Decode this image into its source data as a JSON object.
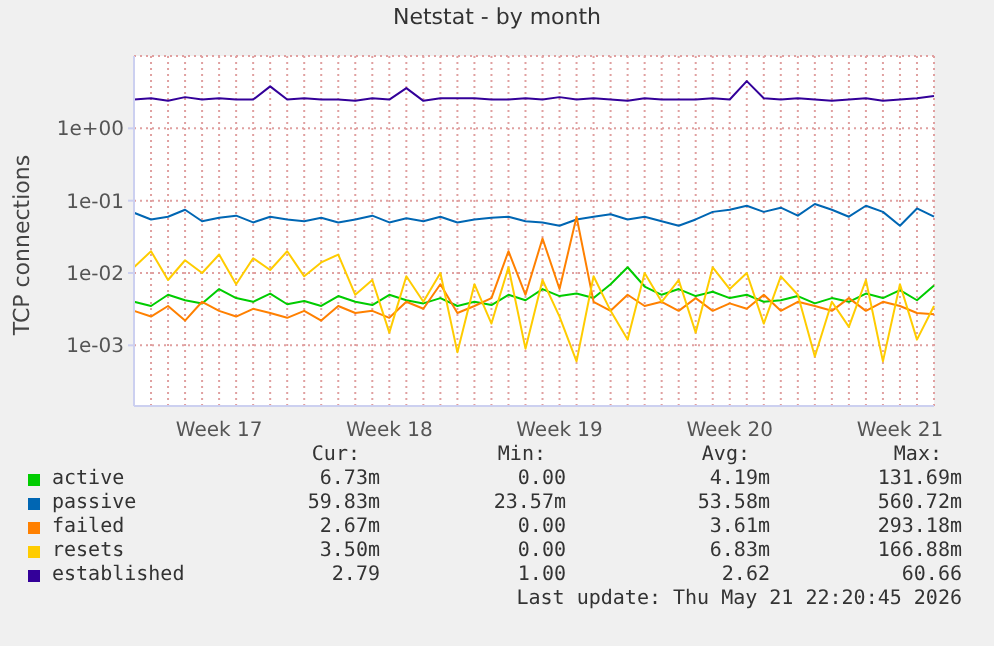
{
  "chart_data": {
    "type": "line",
    "title": "Netstat - by month",
    "ylabel": "TCP connections",
    "log": "y",
    "grid": true,
    "legend": "bottom",
    "marker": "none",
    "line_style": "solid",
    "categories": [
      null,
      null,
      null,
      null,
      null,
      "Week 17",
      null,
      null,
      null,
      null,
      null,
      null,
      null,
      null,
      null,
      "Week 18",
      null,
      null,
      null,
      null,
      null,
      null,
      null,
      null,
      null,
      "Week 19",
      null,
      null,
      null,
      null,
      null,
      null,
      null,
      null,
      null,
      "Week 20",
      null,
      null,
      null,
      null,
      null,
      null,
      null,
      null,
      null,
      "Week 21",
      null,
      null
    ],
    "ylim": [
      0.000145,
      10
    ],
    "yticks": [
      {
        "value": 0.001,
        "label": "1e-03"
      },
      {
        "value": 0.01,
        "label": "1e-02"
      },
      {
        "value": 0.1,
        "label": "1e-01"
      },
      {
        "value": 1,
        "label": "1e+00"
      }
    ],
    "series": [
      {
        "name": "active",
        "color": "#00cc00",
        "values": [
          0.004,
          0.0035,
          0.005,
          0.0042,
          0.0038,
          0.006,
          0.0045,
          0.004,
          0.0052,
          0.0037,
          0.0041,
          0.0035,
          0.0048,
          0.004,
          0.0036,
          0.005,
          0.0042,
          0.0038,
          0.0045,
          0.0035,
          0.004,
          0.0036,
          0.005,
          0.0042,
          0.006,
          0.0048,
          0.0052,
          0.0045,
          0.007,
          0.012,
          0.0065,
          0.005,
          0.006,
          0.0048,
          0.0055,
          0.0045,
          0.005,
          0.004,
          0.0042,
          0.0048,
          0.0038,
          0.0045,
          0.004,
          0.0052,
          0.0045,
          0.0058,
          0.0042,
          0.0067
        ]
      },
      {
        "name": "passive",
        "color": "#0066b3",
        "values": [
          0.068,
          0.055,
          0.06,
          0.075,
          0.052,
          0.058,
          0.062,
          0.05,
          0.06,
          0.055,
          0.052,
          0.058,
          0.05,
          0.055,
          0.062,
          0.05,
          0.057,
          0.052,
          0.06,
          0.05,
          0.055,
          0.058,
          0.06,
          0.052,
          0.05,
          0.045,
          0.055,
          0.06,
          0.065,
          0.055,
          0.06,
          0.052,
          0.045,
          0.055,
          0.07,
          0.075,
          0.085,
          0.07,
          0.08,
          0.062,
          0.09,
          0.075,
          0.06,
          0.085,
          0.07,
          0.045,
          0.078,
          0.06
        ]
      },
      {
        "name": "failed",
        "color": "#ff8000",
        "values": [
          0.003,
          0.0025,
          0.0035,
          0.0022,
          0.004,
          0.003,
          0.0025,
          0.0032,
          0.0028,
          0.0024,
          0.003,
          0.0022,
          0.0035,
          0.0028,
          0.003,
          0.0024,
          0.004,
          0.0032,
          0.007,
          0.0028,
          0.0035,
          0.0045,
          0.02,
          0.005,
          0.03,
          0.006,
          0.06,
          0.004,
          0.003,
          0.005,
          0.0035,
          0.004,
          0.003,
          0.0045,
          0.003,
          0.0038,
          0.0032,
          0.005,
          0.003,
          0.004,
          0.0035,
          0.003,
          0.0045,
          0.003,
          0.004,
          0.0035,
          0.0028,
          0.0027
        ]
      },
      {
        "name": "resets",
        "color": "#ffcc00",
        "values": [
          0.012,
          0.02,
          0.008,
          0.015,
          0.01,
          0.018,
          0.007,
          0.016,
          0.011,
          0.02,
          0.009,
          0.014,
          0.018,
          0.005,
          0.008,
          0.0015,
          0.009,
          0.004,
          0.01,
          0.0008,
          0.007,
          0.002,
          0.012,
          0.0009,
          0.008,
          0.0025,
          0.0006,
          0.009,
          0.003,
          0.0012,
          0.01,
          0.004,
          0.008,
          0.0015,
          0.012,
          0.006,
          0.01,
          0.002,
          0.009,
          0.005,
          0.0007,
          0.004,
          0.0018,
          0.008,
          0.0006,
          0.007,
          0.0012,
          0.0035
        ]
      },
      {
        "name": "established",
        "color": "#330099",
        "values": [
          2.5,
          2.6,
          2.4,
          2.7,
          2.5,
          2.6,
          2.5,
          2.5,
          3.8,
          2.5,
          2.6,
          2.5,
          2.5,
          2.4,
          2.6,
          2.5,
          3.6,
          2.4,
          2.6,
          2.6,
          2.6,
          2.5,
          2.5,
          2.6,
          2.5,
          2.7,
          2.5,
          2.6,
          2.5,
          2.4,
          2.6,
          2.5,
          2.5,
          2.5,
          2.6,
          2.5,
          4.5,
          2.6,
          2.5,
          2.6,
          2.5,
          2.4,
          2.5,
          2.6,
          2.4,
          2.5,
          2.6,
          2.8
        ]
      }
    ],
    "annotations": [
      "Cur:",
      "Min:",
      "Avg:",
      "Max:",
      "6.73m",
      "0.00",
      "4.19m",
      "131.69m",
      "59.83m",
      "23.57m",
      "53.58m",
      "560.72m",
      "2.67m",
      "0.00",
      "3.61m",
      "293.18m",
      "3.50m",
      "0.00",
      "6.83m",
      "166.88m",
      "2.79",
      "1.00",
      "2.62",
      "60.66",
      "Last update: Thu May 21 22:20:45 2026"
    ]
  }
}
